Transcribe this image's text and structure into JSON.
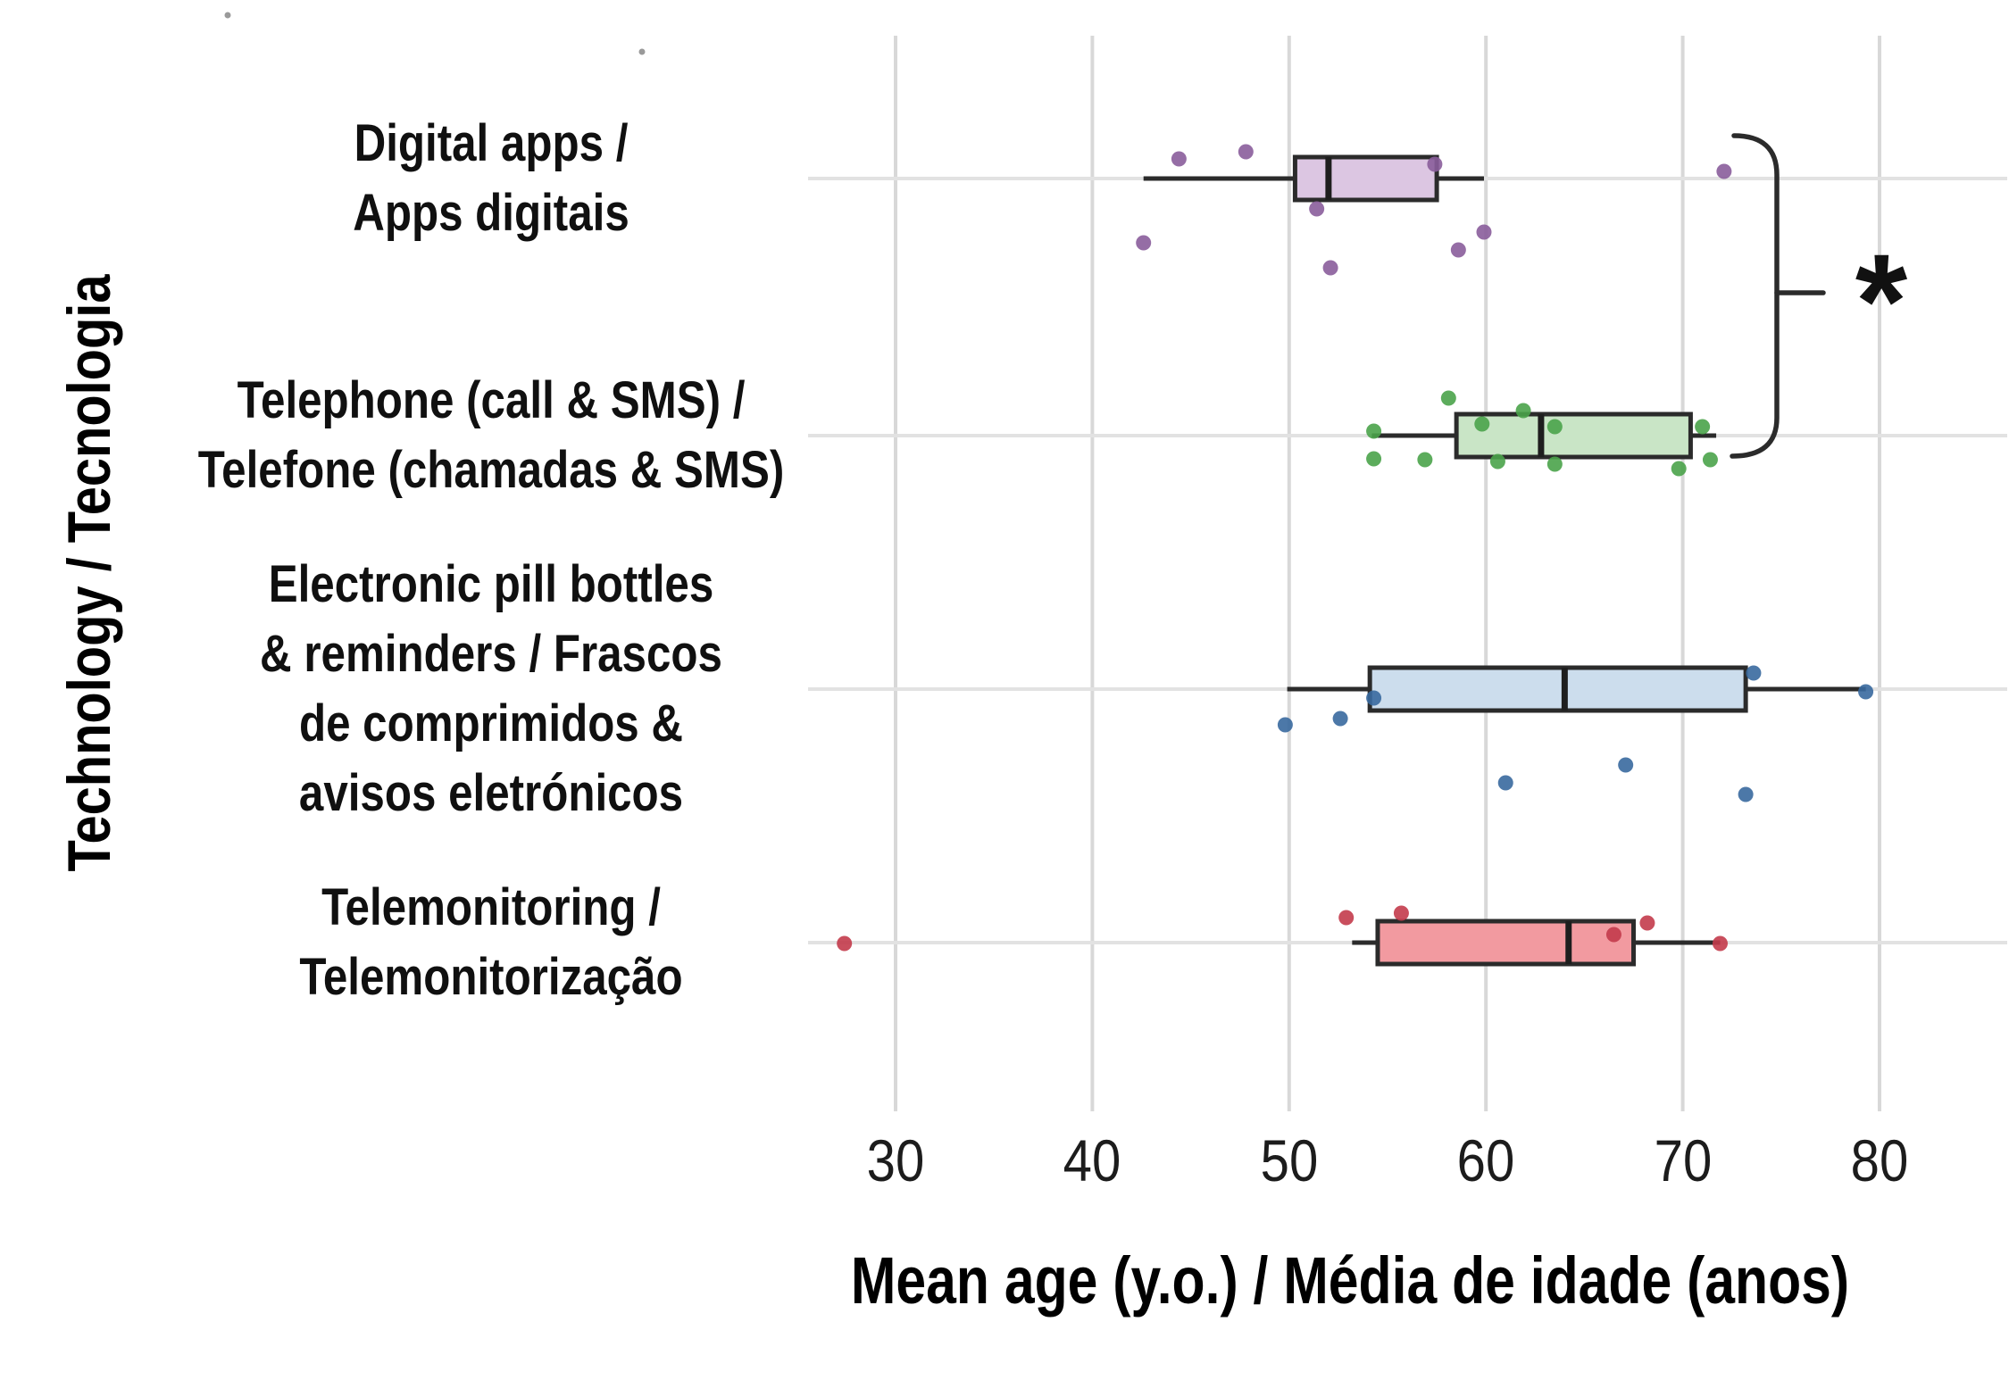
{
  "chart_data": {
    "type": "boxplot",
    "orientation": "horizontal",
    "title": "",
    "xlabel": "Mean age (y.o.) / Média de idade (anos)",
    "ylabel": "Technology / Tecnologia",
    "x_axis": {
      "ticks": [
        30,
        40,
        50,
        60,
        70,
        80
      ],
      "range_shown": [
        25.7,
        86.5
      ],
      "grid": true
    },
    "categories": [
      "Digital apps / Apps digitais",
      "Telephone (call & SMS) / Telefone (chamadas & SMS)",
      "Electronic pill bottles & reminders / Frascos de comprimidos & avisos eletrónicos",
      "Telemonitoring / Telemonitorização"
    ],
    "series": [
      {
        "name": "Digital apps / Apps digitais",
        "label_lines": [
          "Digital apps /",
          "Apps digitais"
        ],
        "box_fill": "#dcc6e2",
        "point_color": "#8a5d9b",
        "whisker_low": 42.6,
        "q1": 50.3,
        "median": 52.0,
        "q3": 57.5,
        "whisker_high": 59.9,
        "outliers": [
          72.1
        ],
        "points": [
          {
            "age": 42.6,
            "jitter": 72
          },
          {
            "age": 44.4,
            "jitter": -22
          },
          {
            "age": 47.8,
            "jitter": -30
          },
          {
            "age": 51.4,
            "jitter": 34
          },
          {
            "age": 52.1,
            "jitter": 100
          },
          {
            "age": 57.4,
            "jitter": -16
          },
          {
            "age": 58.6,
            "jitter": 80
          },
          {
            "age": 59.9,
            "jitter": 60
          },
          {
            "age": 72.1,
            "jitter": -8
          }
        ]
      },
      {
        "name": "Telephone (call & SMS) / Telefone (chamadas & SMS)",
        "label_lines": [
          "Telephone (call & SMS) /",
          "Telefone (chamadas & SMS)"
        ],
        "box_fill": "#c9e5c6",
        "point_color": "#4aa34a",
        "whisker_low": 54.2,
        "q1": 58.5,
        "median": 62.8,
        "q3": 70.4,
        "whisker_high": 71.7,
        "outliers": [],
        "points": [
          {
            "age": 54.3,
            "jitter": -5
          },
          {
            "age": 54.3,
            "jitter": 26
          },
          {
            "age": 56.9,
            "jitter": 27
          },
          {
            "age": 58.1,
            "jitter": -42
          },
          {
            "age": 59.8,
            "jitter": -13
          },
          {
            "age": 60.6,
            "jitter": 29
          },
          {
            "age": 61.9,
            "jitter": -28
          },
          {
            "age": 63.5,
            "jitter": -10
          },
          {
            "age": 63.5,
            "jitter": 32
          },
          {
            "age": 69.8,
            "jitter": 37
          },
          {
            "age": 71.0,
            "jitter": -10
          },
          {
            "age": 71.4,
            "jitter": 27
          }
        ]
      },
      {
        "name": "Electronic pill bottles & reminders / Frascos de comprimidos & avisos eletrónicos",
        "label_lines": [
          "Electronic pill bottles",
          "& reminders / Frascos",
          "de comprimidos &",
          "avisos eletrónicos"
        ],
        "box_fill": "#ccdded",
        "point_color": "#39699e",
        "whisker_low": 49.9,
        "q1": 54.1,
        "median": 64.0,
        "q3": 73.2,
        "whisker_high": 79.3,
        "outliers": [],
        "points": [
          {
            "age": 49.8,
            "jitter": 40
          },
          {
            "age": 52.6,
            "jitter": 33
          },
          {
            "age": 54.3,
            "jitter": 10
          },
          {
            "age": 61.0,
            "jitter": 105
          },
          {
            "age": 67.1,
            "jitter": 85
          },
          {
            "age": 73.6,
            "jitter": -18
          },
          {
            "age": 73.2,
            "jitter": 118
          },
          {
            "age": 79.3,
            "jitter": 3
          }
        ]
      },
      {
        "name": "Telemonitoring / Telemonitorização",
        "label_lines": [
          "Telemonitoring /",
          "Telemonitorização"
        ],
        "box_fill": "#f29aa0",
        "point_color": "#c33b4b",
        "whisker_low": 53.2,
        "q1": 54.5,
        "median": 64.2,
        "q3": 67.5,
        "whisker_high": 71.9,
        "outliers": [
          27.4
        ],
        "points": [
          {
            "age": 27.4,
            "jitter": 1
          },
          {
            "age": 52.9,
            "jitter": -28
          },
          {
            "age": 55.7,
            "jitter": -33
          },
          {
            "age": 66.5,
            "jitter": -9
          },
          {
            "age": 68.2,
            "jitter": -22
          },
          {
            "age": 71.9,
            "jitter": 1
          }
        ]
      }
    ],
    "significance": {
      "symbol": "*",
      "between": [
        "Digital apps / Apps digitais",
        "Telephone (call & SMS) / Telefone (chamadas & SMS)"
      ]
    },
    "stray_marks": [
      [
        255,
        17
      ],
      [
        719,
        58
      ]
    ],
    "colors": {
      "box_border": "#2b2b2b",
      "median_line": "#1e1e1e",
      "grid_vertical": "#d8d8d8",
      "grid_horizontal": "#e2e2e2",
      "background": "#ffffff"
    }
  }
}
